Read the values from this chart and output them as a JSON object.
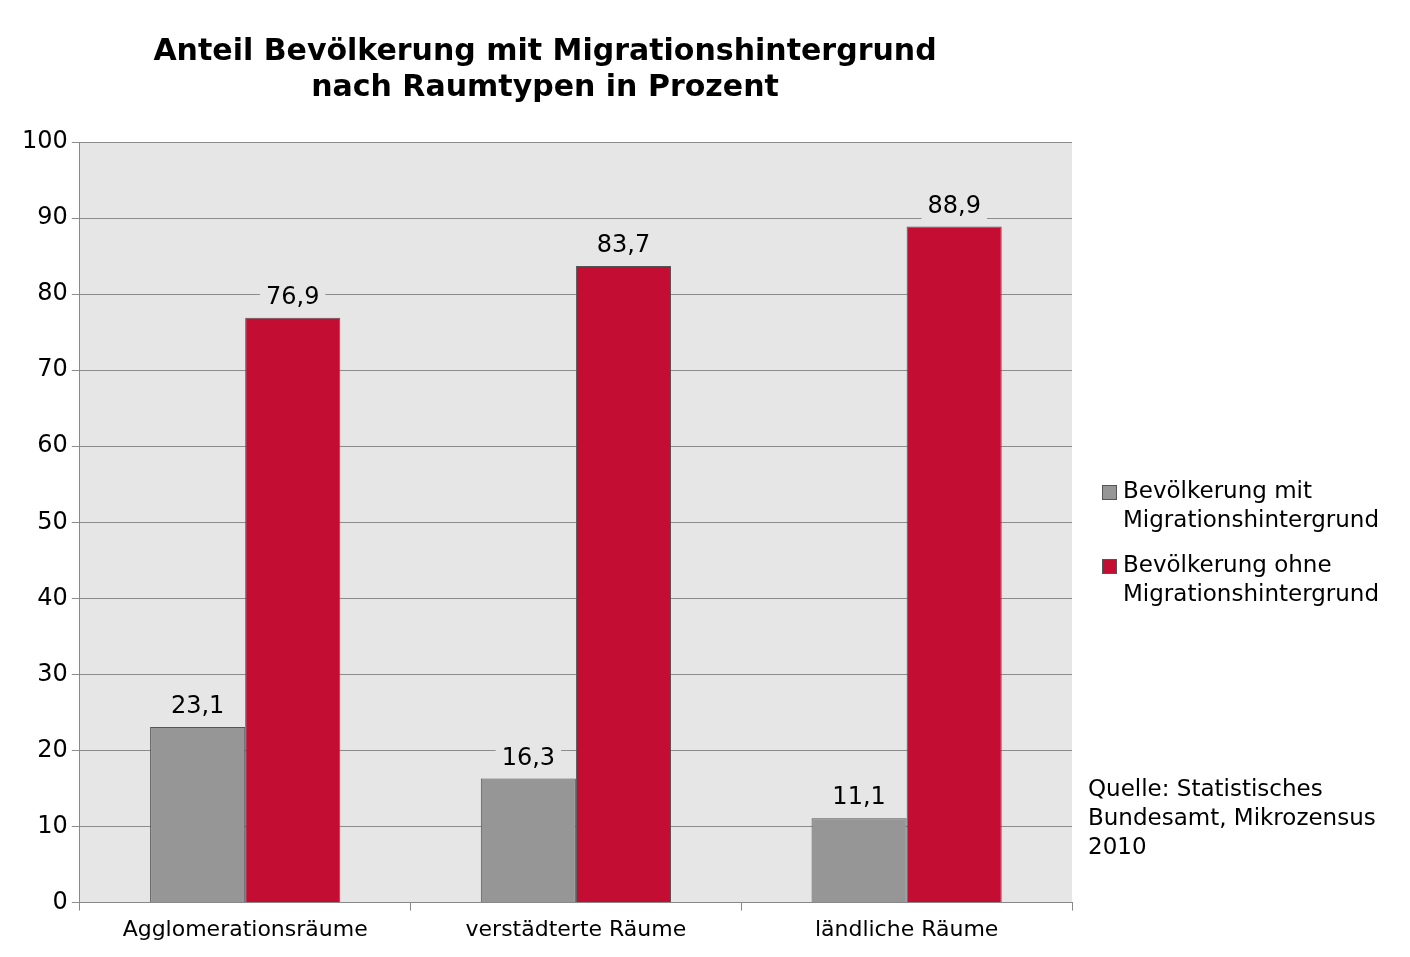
{
  "chart_data": {
    "type": "bar",
    "title": "Anteil Bevölkerung mit Migrationshintergrund\nnach Raumtypen in Prozent",
    "categories": [
      "Agglomerationsräume",
      "verstädterte Räume",
      "ländliche Räume"
    ],
    "series": [
      {
        "name": "Bevölkerung mit Migrationshintergrund",
        "color": "#969696",
        "values": [
          23.1,
          16.3,
          11.1
        ],
        "value_labels": [
          "23,1",
          "16,3",
          "11,1"
        ]
      },
      {
        "name": "Bevölkerung ohne Migrationshintergrund",
        "color": "#c30d32",
        "values": [
          76.9,
          83.7,
          88.9
        ],
        "value_labels": [
          "76,9",
          "83,7",
          "88,9"
        ]
      }
    ],
    "ylim": [
      0,
      100
    ],
    "yticks": [
      0,
      10,
      20,
      30,
      40,
      50,
      60,
      70,
      80,
      90,
      100
    ],
    "grid": "y",
    "legend": "right",
    "annotations": [
      "Quelle: Statistisches Bundesamt, Mikrozensus 2010"
    ]
  }
}
